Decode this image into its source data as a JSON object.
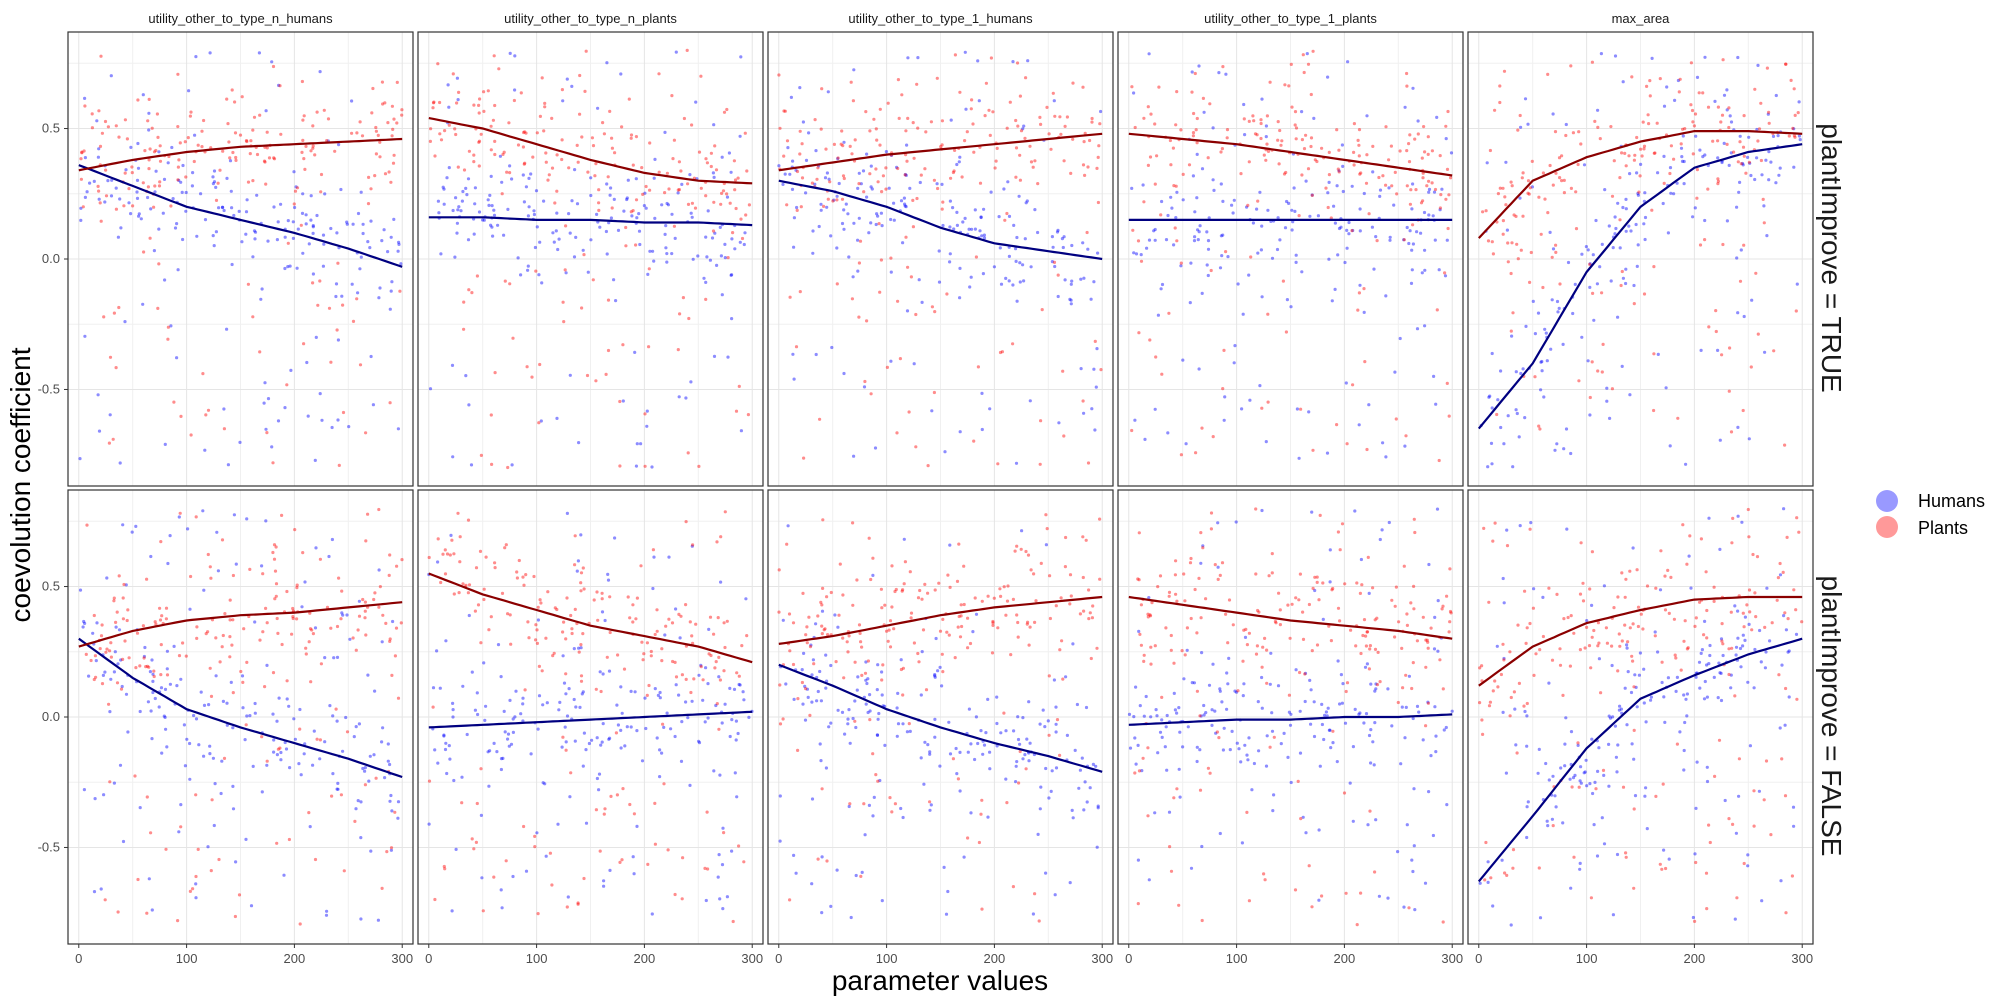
{
  "chart_data": {
    "type": "scatter",
    "panels": [
      "utility_other_to_type_n_humans",
      "utility_other_to_type_n_plants",
      "utility_other_to_type_1_humans",
      "utility_other_to_type_1_plants",
      "max_area"
    ],
    "rows": [
      "plantImprove = TRUE",
      "plantImprove = FALSE"
    ],
    "xlabel": "parameter values",
    "ylabel": "coevolution coefficient",
    "x_ticks": [
      0,
      100,
      200,
      300
    ],
    "y_ticks": [
      -0.5,
      0.0,
      0.5
    ],
    "y_tick_labels": [
      "-0.5",
      "0.0",
      "0.5"
    ],
    "xlim": [
      -10,
      310
    ],
    "ylim": [
      -0.87,
      0.87
    ],
    "grid": true,
    "legend_position": "right",
    "series": [
      {
        "name": "Humans",
        "color": "#0000ff",
        "smooth_color": "#000080"
      },
      {
        "name": "Plants",
        "color": "#ff0000",
        "smooth_color": "#8b0000"
      }
    ],
    "smooth_x": [
      0,
      50,
      100,
      150,
      200,
      250,
      300
    ],
    "smooth": [
      [
        {
          "humans": [
            0.36,
            0.28,
            0.2,
            0.15,
            0.1,
            0.04,
            -0.03
          ],
          "plants": [
            0.34,
            0.38,
            0.41,
            0.43,
            0.44,
            0.45,
            0.46
          ]
        },
        {
          "humans": [
            0.16,
            0.16,
            0.15,
            0.15,
            0.14,
            0.14,
            0.13
          ],
          "plants": [
            0.54,
            0.5,
            0.44,
            0.38,
            0.33,
            0.3,
            0.29
          ]
        },
        {
          "humans": [
            0.3,
            0.26,
            0.2,
            0.12,
            0.06,
            0.03,
            0.0
          ],
          "plants": [
            0.34,
            0.37,
            0.4,
            0.42,
            0.44,
            0.46,
            0.48
          ]
        },
        {
          "humans": [
            0.15,
            0.15,
            0.15,
            0.15,
            0.15,
            0.15,
            0.15
          ],
          "plants": [
            0.48,
            0.46,
            0.44,
            0.41,
            0.38,
            0.35,
            0.32
          ]
        },
        {
          "humans": [
            -0.65,
            -0.4,
            -0.05,
            0.2,
            0.35,
            0.41,
            0.44
          ],
          "plants": [
            0.08,
            0.3,
            0.39,
            0.45,
            0.49,
            0.49,
            0.48
          ]
        }
      ],
      [
        {
          "humans": [
            0.3,
            0.15,
            0.03,
            -0.04,
            -0.1,
            -0.16,
            -0.23
          ],
          "plants": [
            0.27,
            0.33,
            0.37,
            0.39,
            0.4,
            0.42,
            0.44
          ]
        },
        {
          "humans": [
            -0.04,
            -0.03,
            -0.02,
            -0.01,
            0.0,
            0.01,
            0.02
          ],
          "plants": [
            0.55,
            0.47,
            0.41,
            0.35,
            0.31,
            0.27,
            0.21
          ]
        },
        {
          "humans": [
            0.2,
            0.12,
            0.03,
            -0.04,
            -0.1,
            -0.15,
            -0.21
          ],
          "plants": [
            0.28,
            0.31,
            0.35,
            0.39,
            0.42,
            0.44,
            0.46
          ]
        },
        {
          "humans": [
            -0.03,
            -0.02,
            -0.01,
            -0.01,
            0.0,
            0.0,
            0.01
          ],
          "plants": [
            0.46,
            0.43,
            0.4,
            0.37,
            0.35,
            0.33,
            0.3
          ]
        },
        {
          "humans": [
            -0.63,
            -0.38,
            -0.12,
            0.07,
            0.16,
            0.24,
            0.3
          ],
          "plants": [
            0.12,
            0.27,
            0.36,
            0.41,
            0.45,
            0.46,
            0.46
          ]
        }
      ]
    ]
  }
}
